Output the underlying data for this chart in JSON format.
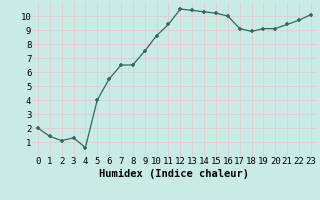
{
  "x": [
    0,
    1,
    2,
    3,
    4,
    5,
    6,
    7,
    8,
    9,
    10,
    11,
    12,
    13,
    14,
    15,
    16,
    17,
    18,
    19,
    20,
    21,
    22,
    23
  ],
  "y": [
    2.0,
    1.4,
    1.1,
    1.3,
    0.6,
    4.0,
    5.5,
    6.5,
    6.5,
    7.5,
    8.6,
    9.4,
    10.5,
    10.4,
    10.3,
    10.2,
    10.0,
    9.1,
    8.9,
    9.1,
    9.1,
    9.4,
    9.7,
    10.1
  ],
  "xlabel": "Humidex (Indice chaleur)",
  "ylim": [
    0,
    11
  ],
  "xlim": [
    -0.5,
    23.5
  ],
  "bg_color": "#c8ebe6",
  "line_color": "#2e6b5e",
  "marker_color": "#2e6b5e",
  "grid_color": "#e8c8cc",
  "xlabel_fontsize": 7.5,
  "tick_fontsize": 6.5
}
